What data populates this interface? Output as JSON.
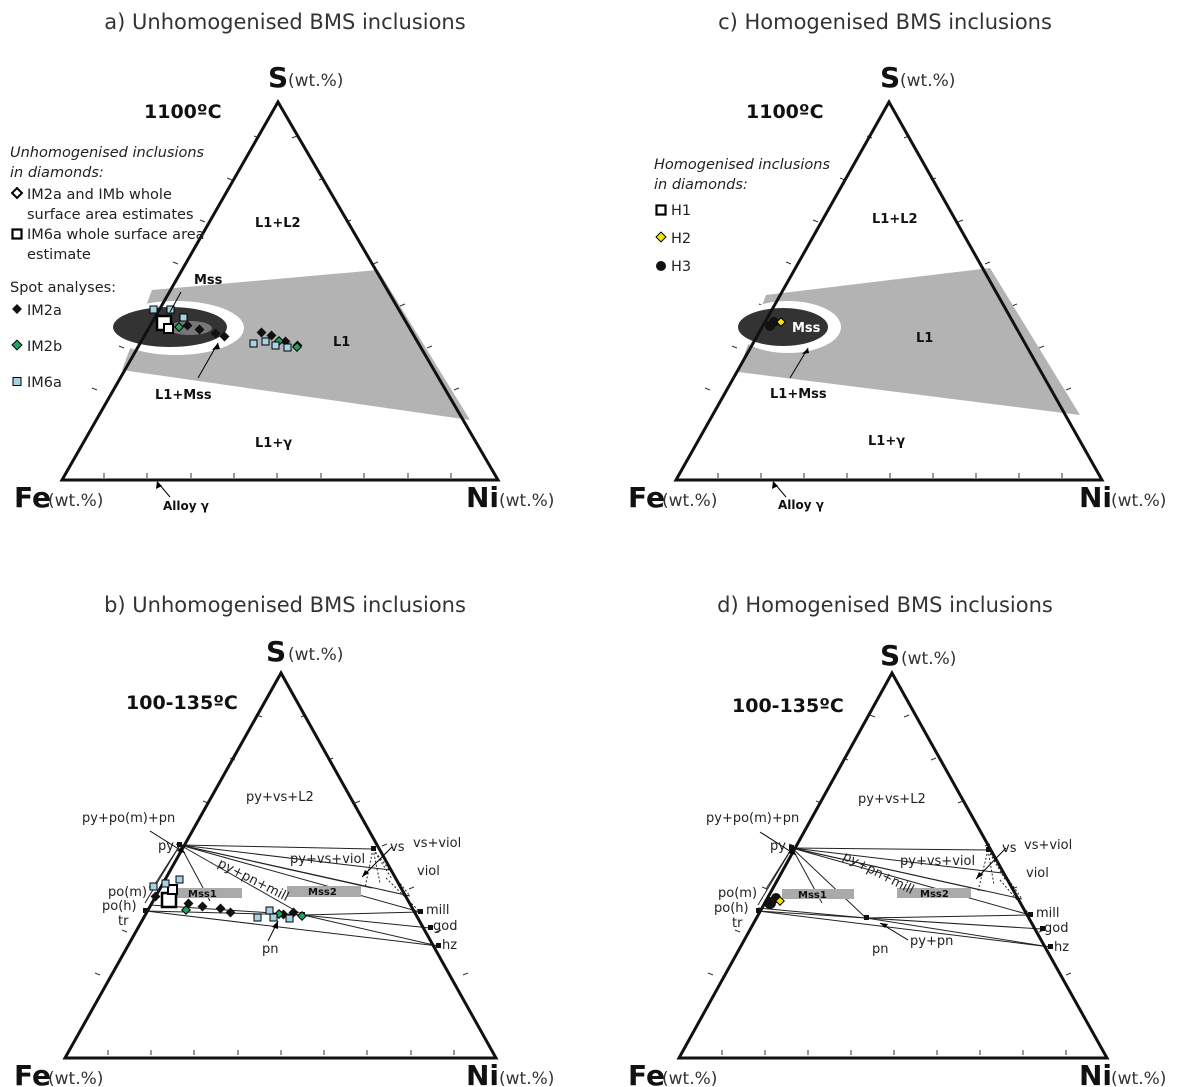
{
  "panels": {
    "a": {
      "title": "a) Unhomogenised BMS inclusions",
      "temperature": "1100ºC",
      "legend": {
        "header": "Unhomogenised inclusions in diamonds:",
        "whole_1": "IM2a and IMb whole surface area estimates",
        "whole_2": "IM6a whole surface area estimate",
        "spot_header": "Spot analyses:",
        "spot_1": "IM2a",
        "spot_2": "IM2b",
        "spot_3": "IM6a"
      }
    },
    "c": {
      "title": "c) Homogenised BMS inclusions",
      "temperature": "1100ºC",
      "legend": {
        "header": "Homogenised inclusions in diamonds:",
        "item_1": "H1",
        "item_2": "H2",
        "item_3": "H3"
      }
    },
    "b": {
      "title": "b) Unhomogenised BMS inclusions",
      "temperature": "100-135ºC"
    },
    "d": {
      "title": "d) Homogenised BMS inclusions",
      "temperature": "100-135ºC"
    }
  },
  "apex": {
    "S": "S",
    "Fe": "Fe",
    "Ni": "Ni",
    "unit": "(wt.%)"
  },
  "fields_1100": {
    "L1_L2": "L1+L2",
    "L1": "L1",
    "Mss": "Mss",
    "L1_Mss": "L1+Mss",
    "L1_gamma": "L1+γ",
    "alloy": "Alloy γ"
  },
  "fields_low": {
    "py_vs_L2": "py+vs+L2",
    "py_po_pn": "py+po(m)+pn",
    "py": "py",
    "vs": "vs",
    "vs_viol": "vs+viol",
    "viol": "viol",
    "py_vs_viol": "py+vs+viol",
    "py_pn_mill": "py+pn+mill",
    "mss1": "Mss1",
    "mss2": "Mss2",
    "po_m": "po(m)",
    "po_h": "po(h)",
    "tr": "tr",
    "mill": "mill",
    "god": "god",
    "hz": "hz",
    "pn": "pn",
    "py_pn": "py+pn"
  },
  "colors": {
    "liquid_field": "#b3b3b3",
    "mss_field": "#333333",
    "im2b": "#1fa363",
    "im6a": "#a6d2e4",
    "h2": "#f2e600"
  }
}
